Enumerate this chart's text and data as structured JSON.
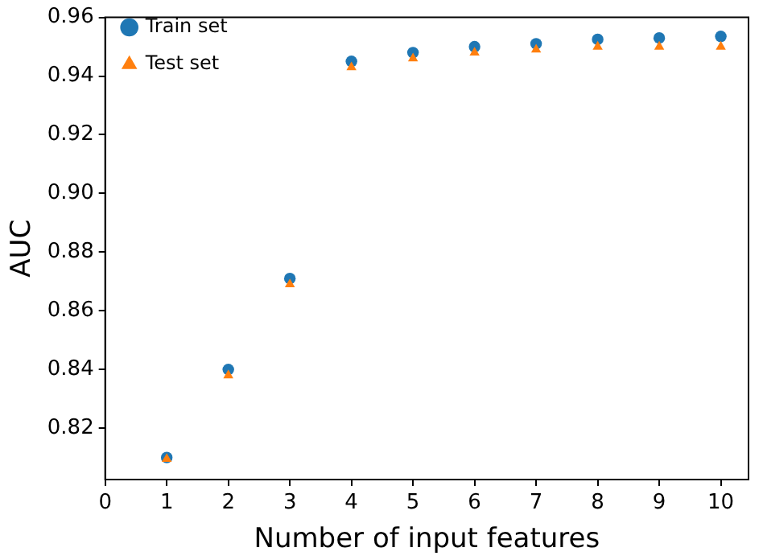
{
  "chart_data": {
    "type": "scatter",
    "xlabel": "Number of input features",
    "ylabel": "AUC",
    "x": [
      1,
      2,
      3,
      4,
      5,
      6,
      7,
      8,
      9,
      10
    ],
    "series": [
      {
        "name": "Train set",
        "color": "#1f77b4",
        "marker": "circle",
        "values": [
          0.81,
          0.84,
          0.871,
          0.945,
          0.948,
          0.95,
          0.951,
          0.9525,
          0.953,
          0.9535
        ]
      },
      {
        "name": "Test set",
        "color": "#ff7f0e",
        "marker": "triangle",
        "values": [
          0.8095,
          0.838,
          0.869,
          0.943,
          0.946,
          0.948,
          0.949,
          0.95,
          0.95,
          0.95
        ]
      }
    ],
    "xlim": [
      0,
      10.45
    ],
    "xticks": [
      0,
      1,
      2,
      3,
      4,
      5,
      6,
      7,
      8,
      9,
      10
    ],
    "ylim": [
      0.8025,
      0.96
    ],
    "yticks": [
      {
        "value": 0.82,
        "label": "0.82"
      },
      {
        "value": 0.84,
        "label": "0.84"
      },
      {
        "value": 0.86,
        "label": "0.86"
      },
      {
        "value": 0.88,
        "label": "0.88"
      },
      {
        "value": 0.9,
        "label": "0.90"
      },
      {
        "value": 0.92,
        "label": "0.92"
      },
      {
        "value": 0.94,
        "label": "0.94"
      },
      {
        "value": 0.96,
        "label": "0.96"
      }
    ],
    "grid": false,
    "legend": "top left"
  }
}
